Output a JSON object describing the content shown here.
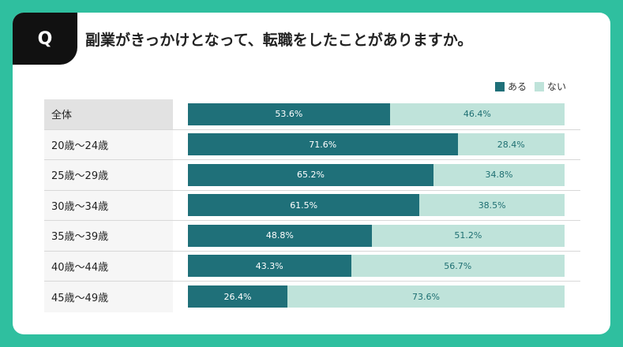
{
  "question": {
    "badge": "Q",
    "text": "副業がきっかけとなって、転職をしたことがありますか。"
  },
  "colors": {
    "background": "#2fbf9f",
    "yes": "#1f7079",
    "no": "#bfe3da"
  },
  "chart_data": {
    "type": "bar",
    "orientation": "horizontal-stacked-100",
    "title": "副業がきっかけとなって、転職をしたことがありますか。",
    "legend_position": "top-right",
    "categories": [
      "全体",
      "20歳〜24歳",
      "25歳〜29歳",
      "30歳〜34歳",
      "35歳〜39歳",
      "40歳〜44歳",
      "45歳〜49歳"
    ],
    "series": [
      {
        "name": "ある",
        "values": [
          53.6,
          71.6,
          65.2,
          61.5,
          48.8,
          43.3,
          26.4
        ]
      },
      {
        "name": "ない",
        "values": [
          46.4,
          28.4,
          34.8,
          38.5,
          51.2,
          56.7,
          73.6
        ]
      }
    ],
    "unit": "%"
  }
}
